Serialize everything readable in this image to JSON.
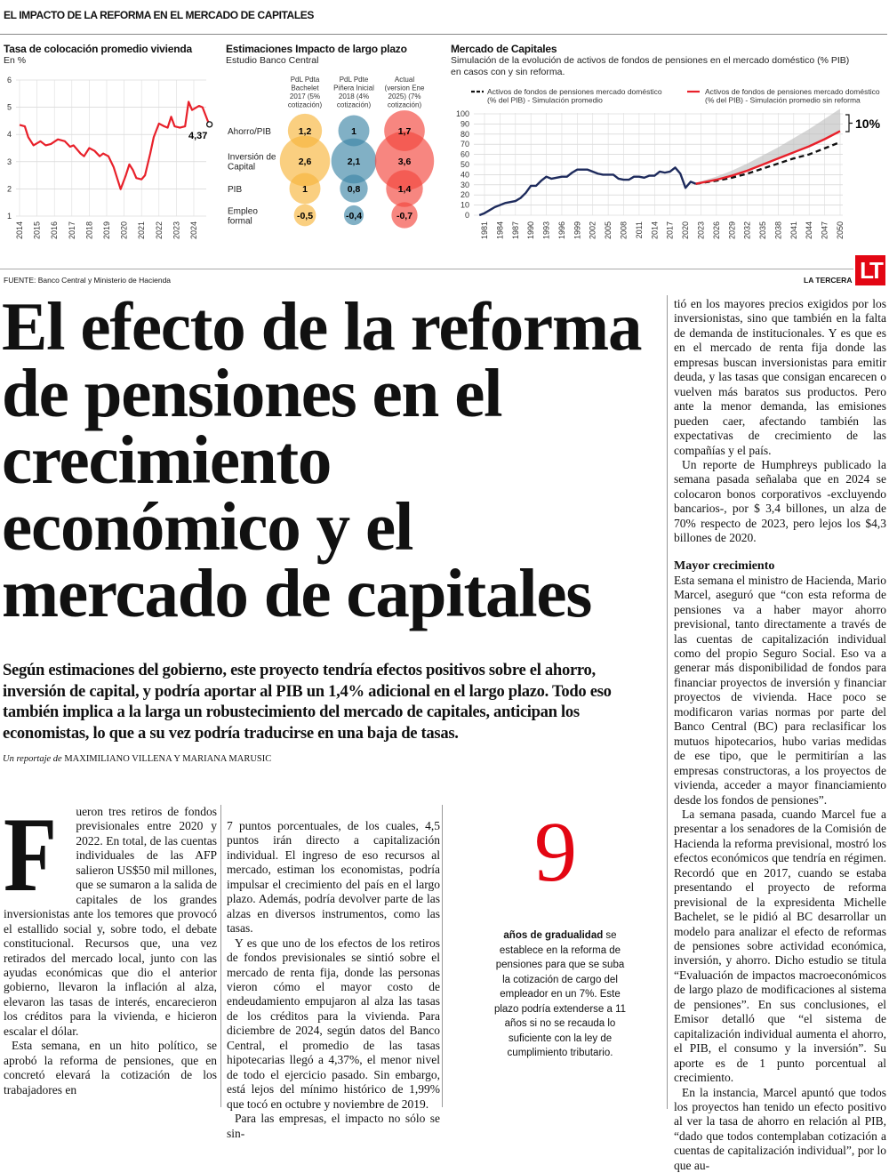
{
  "header": {
    "kicker": "EL IMPACTO DE LA REFORMA EN EL MERCADO DE CAPITALES"
  },
  "chart_data": [
    {
      "type": "line",
      "title": "Tasa de colocación promedio vivienda",
      "subtitle": "En %",
      "ylim": [
        1,
        6
      ],
      "yticks": [
        "1",
        "2",
        "3",
        "4",
        "5",
        "6"
      ],
      "xticks": [
        "2014",
        "2015",
        "2016",
        "2017",
        "2018",
        "2019",
        "2020",
        "2021",
        "2022",
        "2023",
        "2024"
      ],
      "grid": true,
      "color": "#e8202a",
      "points": [
        [
          2014,
          4.35
        ],
        [
          2014.3,
          4.3
        ],
        [
          2014.5,
          3.9
        ],
        [
          2014.8,
          3.6
        ],
        [
          2015.2,
          3.75
        ],
        [
          2015.5,
          3.6
        ],
        [
          2015.8,
          3.65
        ],
        [
          2016.2,
          3.82
        ],
        [
          2016.6,
          3.75
        ],
        [
          2016.9,
          3.55
        ],
        [
          2017.1,
          3.6
        ],
        [
          2017.5,
          3.3
        ],
        [
          2017.7,
          3.2
        ],
        [
          2018,
          3.5
        ],
        [
          2018.3,
          3.4
        ],
        [
          2018.6,
          3.2
        ],
        [
          2018.8,
          3.3
        ],
        [
          2019.1,
          3.2
        ],
        [
          2019.4,
          2.8
        ],
        [
          2019.8,
          1.99
        ],
        [
          2020.1,
          2.5
        ],
        [
          2020.3,
          2.9
        ],
        [
          2020.5,
          2.7
        ],
        [
          2020.7,
          2.4
        ],
        [
          2021,
          2.35
        ],
        [
          2021.2,
          2.5
        ],
        [
          2021.5,
          3.3
        ],
        [
          2021.7,
          3.9
        ],
        [
          2022,
          4.4
        ],
        [
          2022.3,
          4.3
        ],
        [
          2022.5,
          4.25
        ],
        [
          2022.7,
          4.65
        ],
        [
          2022.9,
          4.3
        ],
        [
          2023.2,
          4.25
        ],
        [
          2023.5,
          4.3
        ],
        [
          2023.7,
          5.2
        ],
        [
          2023.9,
          4.9
        ],
        [
          2024.3,
          5.05
        ],
        [
          2024.5,
          5.0
        ],
        [
          2024.8,
          4.5
        ],
        [
          2024.9,
          4.37
        ]
      ],
      "end_label": "4,37"
    },
    {
      "type": "bubble",
      "title": "Estimaciones Impacto de largo plazo",
      "subtitle": "Estudio Banco Central",
      "columns": [
        {
          "label": [
            "PdL Pdta",
            "Bachelet",
            "2017 (5%",
            "cotización)"
          ],
          "color": "#f7b53c",
          "values": [
            1.2,
            2.6,
            1,
            -0.5
          ],
          "labels": [
            "1,2",
            "2,6",
            "1",
            "-0,5"
          ]
        },
        {
          "label": [
            "PdL Pdte",
            "Piñera Inicial",
            "2018 (4%",
            "cotización)"
          ],
          "color": "#3d86a6",
          "values": [
            1,
            2.1,
            0.8,
            -0.4
          ],
          "labels": [
            "1",
            "2,1",
            "0,8",
            "-0,4"
          ]
        },
        {
          "label": [
            "Actual",
            "(version Ene",
            "2025) (7%",
            "cotización)"
          ],
          "color": "#f2453c",
          "values": [
            1.7,
            3.6,
            1.4,
            -0.7
          ],
          "labels": [
            "1,7",
            "3,6",
            "1,4",
            "-0,7"
          ]
        }
      ],
      "rows": [
        [
          "Ahorro/PIB"
        ],
        [
          "Inversión de",
          "Capital"
        ],
        [
          "PIB"
        ],
        [
          "Empleo",
          "formal"
        ]
      ]
    },
    {
      "type": "line",
      "title": "Mercado de Capitales",
      "subtitle": [
        "Simulación de la evolución de activos de fondos de pensiones en el mercado doméstico (% PIB)",
        " en casos con y sin reforma."
      ],
      "ylim": [
        0,
        100
      ],
      "yticks": [
        "0",
        "10",
        "20",
        "30",
        "40",
        "50",
        "60",
        "70",
        "80",
        "90",
        "100"
      ],
      "xticks": [
        "1981",
        "1984",
        "1987",
        "1990",
        "1993",
        "1996",
        "1999",
        "2002",
        "2005",
        "2008",
        "2011",
        "2014",
        "2017",
        "2020",
        "2023",
        "2026",
        "2029",
        "2032",
        "2035",
        "2038",
        "2041",
        "2044",
        "2047",
        "2050"
      ],
      "grid": true,
      "legend_position": "top",
      "historical": {
        "color": "#1d2a5c",
        "points": [
          [
            1980,
            0
          ],
          [
            1981,
            2
          ],
          [
            1982,
            5
          ],
          [
            1983,
            8
          ],
          [
            1984,
            10
          ],
          [
            1985,
            12
          ],
          [
            1986,
            13
          ],
          [
            1987,
            14
          ],
          [
            1988,
            17
          ],
          [
            1989,
            22
          ],
          [
            1990,
            29
          ],
          [
            1991,
            29
          ],
          [
            1992,
            34
          ],
          [
            1993,
            38
          ],
          [
            1994,
            36
          ],
          [
            1995,
            37
          ],
          [
            1996,
            38
          ],
          [
            1997,
            38
          ],
          [
            1998,
            42
          ],
          [
            1999,
            45
          ],
          [
            2000,
            45
          ],
          [
            2001,
            45
          ],
          [
            2002,
            43
          ],
          [
            2003,
            41
          ],
          [
            2004,
            40
          ],
          [
            2005,
            40
          ],
          [
            2006,
            40
          ],
          [
            2007,
            36
          ],
          [
            2008,
            35
          ],
          [
            2009,
            35
          ],
          [
            2010,
            38
          ],
          [
            2011,
            38
          ],
          [
            2012,
            37
          ],
          [
            2013,
            39
          ],
          [
            2014,
            39
          ],
          [
            2015,
            43
          ],
          [
            2016,
            42
          ],
          [
            2017,
            43
          ],
          [
            2018,
            47
          ],
          [
            2019,
            41
          ],
          [
            2020,
            27
          ],
          [
            2021,
            33
          ],
          [
            2022,
            31
          ]
        ]
      },
      "series": [
        {
          "name": [
            "Activos de fondos de pensiones mercado doméstico",
            "(% del PIB) - Simulación promedio"
          ],
          "style": "dashed",
          "color": "#111111",
          "points": [
            [
              2022,
              31
            ],
            [
              2026,
              34
            ],
            [
              2029,
              37
            ],
            [
              2032,
              41
            ],
            [
              2035,
              46
            ],
            [
              2038,
              51
            ],
            [
              2041,
              56
            ],
            [
              2044,
              60
            ],
            [
              2047,
              66
            ],
            [
              2050,
              72
            ]
          ]
        },
        {
          "name": [
            "Activos de fondos de pensiones mercado doméstico",
            "(% del PIB) - Simulación promedio sin reforma"
          ],
          "style": "solid",
          "color": "#e8202a",
          "points": [
            [
              2022,
              31
            ],
            [
              2026,
              35
            ],
            [
              2029,
              39
            ],
            [
              2032,
              44
            ],
            [
              2035,
              50
            ],
            [
              2038,
              56
            ],
            [
              2041,
              62
            ],
            [
              2044,
              68
            ],
            [
              2047,
              75
            ],
            [
              2050,
              83
            ]
          ]
        }
      ],
      "fan_upper": [
        [
          2022,
          32
        ],
        [
          2026,
          38
        ],
        [
          2029,
          44
        ],
        [
          2032,
          51
        ],
        [
          2035,
          59
        ],
        [
          2038,
          67
        ],
        [
          2041,
          76
        ],
        [
          2044,
          85
        ],
        [
          2047,
          95
        ],
        [
          2050,
          105
        ]
      ],
      "annotation": "10%"
    }
  ],
  "footer": {
    "source": "FUENTE:  Banco Central y Ministerio de Hacienda",
    "brand": "LA TERCERA",
    "logo": "LT"
  },
  "headline": [
    "El efecto de la reforma",
    "de pensiones en el",
    "crecimiento",
    "económico y el",
    "mercado de capitales"
  ],
  "deck": "Según estimaciones del gobierno, este proyecto tendría efectos positivos sobre el ahorro, inversión de capital, y podría aportar al PIB un 1,4% adicional en el largo plazo. Todo eso también implica a la larga un robustecimiento del mercado de capitales, anticipan los economistas, lo que a su vez podría traducirse en una baja de tasas.",
  "byline": {
    "prefix": "Un reportaje de",
    "authors": "MAXIMILIANO VILLENA Y MARIANA MARUSIC"
  },
  "body": {
    "drop_cap": "F",
    "col1": [
      "ueron tres retiros de fondos previsionales entre 2020 y 2022. En total, de las cuentas individuales de las AFP salieron US$50 mil millones, que se sumaron a la salida de capitales de los grandes inversionistas ante los temores que provocó el estallido social y, sobre todo, el debate constitucional. Recursos que, una vez retirados del mercado local, junto con las ayudas económicas que dio el anterior gobierno, llevaron la inflación al alza, elevaron las tasas de interés, encarecieron los créditos para la vivienda, e hicieron escalar el dólar.",
      "Esta semana, en un hito político, se aprobó la reforma de pensiones, que en concretó elevará la cotización de los trabajadores en"
    ],
    "col2": [
      "7 puntos porcentuales, de los cuales, 4,5 puntos irán directo a capitalización individual. El ingreso de eso recursos al mercado, estiman los economistas, podría impulsar el crecimiento del país en el largo plazo. Además, podría devolver parte de las alzas en diversos instrumentos, como las tasas.",
      "Y es que uno de los efectos de los retiros de fondos previsionales se sintió sobre el mercado de renta fija, donde las personas vieron cómo el mayor costo de endeudamiento empujaron al alza las tasas de los créditos para la vivienda. Para diciembre de 2024, según datos del Banco Central, el promedio de las tasas hipotecarias llegó a 4,37%, el menor nivel de todo el ejercicio pasado. Sin embargo, está lejos del mínimo histórico de 1,99% que tocó en octubre y noviembre de 2019.",
      "Para las empresas, el impacto no sólo se sin-"
    ],
    "col3": [
      "tió en los mayores precios exigidos por los inversionistas, sino que también en la falta de demanda de institucionales. Y es que es en el mercado de renta fija donde las empresas buscan inversionistas para emitir deuda, y las tasas que consigan encarecen o vuelven más baratos sus productos. Pero ante la menor demanda, las emisiones pueden caer, afectando también las expectativas de crecimiento de las compañías y el país.",
      "Un reporte de Humphreys publicado la semana pasada señalaba que en 2024 se colocaron bonos corporativos -excluyendo bancarios-, por $ 3,4 billones, un alza de 70% respecto de 2023, pero lejos los $4,3 billones de 2020."
    ],
    "subhead": "Mayor crecimiento",
    "col3b": [
      "Esta semana el ministro de Hacienda, Mario Marcel, aseguró que “con esta reforma de pensiones va a haber mayor ahorro previsional, tanto directamente a través de las cuentas de capitalización individual como del propio Seguro Social. Eso va a generar más disponibilidad de fondos para financiar proyectos de inversión y financiar proyectos de vivienda. Hace poco se modificaron varias normas por parte del Banco Central (BC) para reclasificar los mutuos hipotecarios, hubo varias medidas de ese tipo, que le permitirían a las empresas constructoras, a los proyectos de vivienda, acceder a mayor financiamiento desde los fondos de pensiones”.",
      "La semana pasada, cuando Marcel fue a presentar a los senadores de la Comisión de Hacienda la reforma previsional, mostró los efectos económicos que tendría en régimen. Recordó que en 2017, cuando se estaba presentando el proyecto de reforma previsional de la expresidenta Michelle Bachelet, se le pidió al BC desarrollar un modelo para analizar el efecto de reformas de pensiones sobre actividad económica, inversión, y ahorro. Dicho estudio se titula “Evaluación de impactos macroeconómicos de largo plazo de modificaciones al sistema de pensiones”. En sus conclusiones, el Emisor detalló que “el sistema de capitalización individual aumenta el ahorro, el PIB, el consumo y la inversión”. Su aporte es de 1 punto porcentual al crecimiento.",
      "En la instancia, Marcel apuntó que todos los proyectos han tenido un efecto positivo al ver la tasa de ahorro en relación al PIB, “dado que todos contemplaban cotización a cuentas de capitalización individual”, por lo que au-"
    ]
  },
  "sidebar": {
    "number": "9",
    "bold": "años de gradualidad",
    "text": " se establece en la reforma de pensiones para que se suba la cotización de cargo del empleador en un 7%. Este plazo podría extenderse a 11 años si no se recauda lo suficiente con la ley de cumplimiento tributario."
  }
}
